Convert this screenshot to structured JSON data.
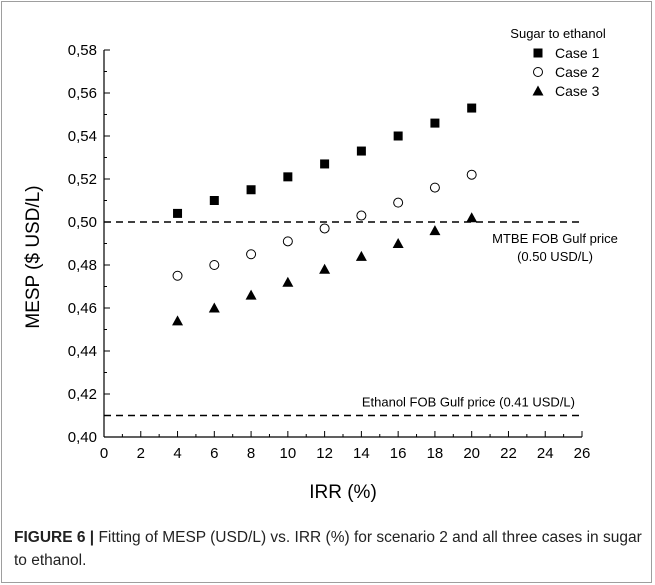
{
  "chart_data": {
    "type": "scatter",
    "xlabel": "IRR (%)",
    "ylabel": "MESP ($ USD/L)",
    "xlim": [
      0,
      26
    ],
    "ylim": [
      0.4,
      0.58
    ],
    "xticks": [
      "0",
      "2",
      "4",
      "6",
      "8",
      "10",
      "12",
      "14",
      "16",
      "18",
      "20",
      "22",
      "24",
      "26"
    ],
    "yticks": [
      "0,40",
      "0,42",
      "0,44",
      "0,46",
      "0,48",
      "0,50",
      "0,52",
      "0,54",
      "0,56",
      "0,58"
    ],
    "grid": false,
    "legend_title": "Sugar to ethanol",
    "legend_position": "top-right",
    "x": [
      4,
      6,
      8,
      10,
      12,
      14,
      16,
      18,
      20
    ],
    "series": [
      {
        "name": "Case 1",
        "marker": "filled-square",
        "values": [
          0.504,
          0.51,
          0.515,
          0.521,
          0.527,
          0.533,
          0.54,
          0.546,
          0.553
        ]
      },
      {
        "name": "Case 2",
        "marker": "open-circle",
        "values": [
          0.475,
          0.48,
          0.485,
          0.491,
          0.497,
          0.503,
          0.509,
          0.516,
          0.522
        ]
      },
      {
        "name": "Case 3",
        "marker": "filled-triangle",
        "values": [
          0.454,
          0.46,
          0.466,
          0.472,
          0.478,
          0.484,
          0.49,
          0.496,
          0.502
        ]
      }
    ],
    "reference_lines": [
      {
        "y": 0.5,
        "style": "dashed",
        "label_line1": "MTBE FOB Gulf price",
        "label_line2": "(0.50 USD/L)"
      },
      {
        "y": 0.41,
        "style": "dashed",
        "label_line1": "Ethanol FOB Gulf price (0.41 USD/L)",
        "label_line2": ""
      }
    ],
    "colors": {
      "marker": "#000000",
      "axis": "#000000"
    }
  },
  "caption": {
    "figure_label": "FIGURE 6 |",
    "text": " Fitting of MESP (USD/L) vs. IRR (%) for scenario 2 and all three cases in sugar to ethanol."
  }
}
